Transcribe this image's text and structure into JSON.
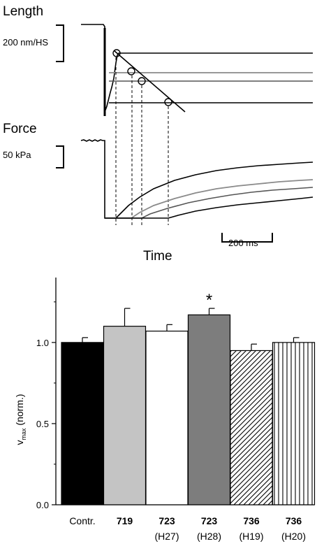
{
  "traces": {
    "length_label": "Length",
    "length_scale_label": "200 nm/HS",
    "force_label": "Force",
    "force_scale_label": "50 kPa",
    "time_label": "Time",
    "time_scale_label": "200 ms"
  },
  "chart_data": {
    "type": "bar",
    "ylabel": "v",
    "ylabel_sub": "max",
    "ylabel_suffix": " (norm.)",
    "ylim": [
      0,
      1.4
    ],
    "yticks": [
      0.0,
      0.5,
      1.0
    ],
    "ytick_labels": [
      "0.0",
      "0.5",
      "1.0"
    ],
    "categories": [
      {
        "line1": "Contr.",
        "line2": "",
        "bold": false
      },
      {
        "line1": "719",
        "line2": "",
        "bold": true
      },
      {
        "line1": "723",
        "line2": "(H27)",
        "bold": true
      },
      {
        "line1": "723",
        "line2": "(H28)",
        "bold": true
      },
      {
        "line1": "736",
        "line2": "(H19)",
        "bold": true
      },
      {
        "line1": "736",
        "line2": "(H20)",
        "bold": true
      }
    ],
    "values": [
      1.0,
      1.1,
      1.07,
      1.17,
      0.95,
      1.0
    ],
    "errors": [
      0.03,
      0.11,
      0.04,
      0.04,
      0.04,
      0.03
    ],
    "fills": [
      "solid-black",
      "solid-lightgray",
      "white",
      "solid-darkgray",
      "diagonal-hatch",
      "vertical-hatch"
    ],
    "colors": {
      "black": "#000000",
      "lightgray": "#c4c4c4",
      "darkgray": "#7d7d7d",
      "white": "#ffffff"
    },
    "significance": [
      false,
      false,
      false,
      true,
      false,
      false
    ],
    "significance_marker": "*",
    "grid": false,
    "legend": "none"
  }
}
